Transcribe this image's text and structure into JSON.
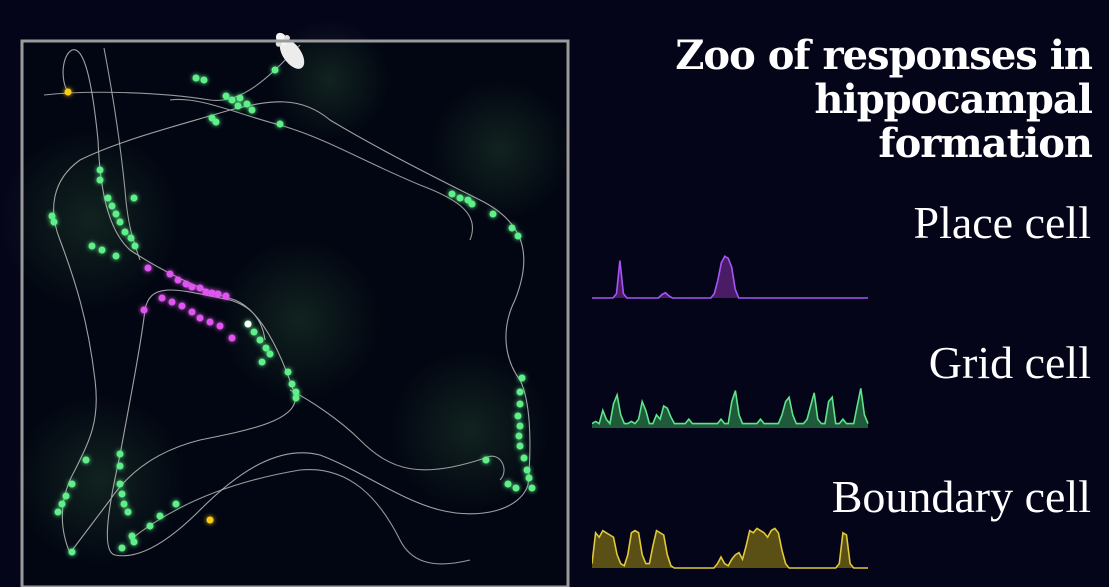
{
  "title": {
    "line1": "Zoo of responses in",
    "line2": "hippocampal formation"
  },
  "cells": [
    {
      "key": "place",
      "label": "Place cell",
      "color": "#a855f7",
      "fill": "#4a1c66",
      "trace": [
        0,
        0,
        0,
        0,
        0,
        0,
        0,
        0.1,
        0.85,
        0.1,
        0,
        0,
        0,
        0,
        0,
        0,
        0,
        0,
        0,
        0,
        0.08,
        0.12,
        0.05,
        0,
        0,
        0,
        0,
        0,
        0,
        0,
        0,
        0,
        0,
        0,
        0,
        0.1,
        0.4,
        0.8,
        0.95,
        0.9,
        0.7,
        0.2,
        0,
        0,
        0,
        0,
        0,
        0,
        0,
        0,
        0,
        0,
        0,
        0,
        0,
        0,
        0,
        0,
        0,
        0,
        0,
        0,
        0,
        0,
        0,
        0,
        0,
        0,
        0,
        0,
        0,
        0,
        0,
        0,
        0,
        0,
        0,
        0,
        0,
        0
      ]
    },
    {
      "key": "grid",
      "label": "Grid cell",
      "color": "#5ee58a",
      "fill": "#1f5a3a",
      "trace": [
        0.1,
        0.15,
        0.1,
        0.4,
        0.2,
        0.1,
        0.55,
        0.75,
        0.3,
        0.1,
        0.1,
        0.15,
        0.1,
        0.2,
        0.6,
        0.4,
        0.1,
        0.1,
        0.3,
        0.2,
        0.5,
        0.45,
        0.25,
        0.1,
        0.1,
        0.1,
        0.1,
        0.2,
        0.1,
        0.1,
        0.1,
        0.1,
        0.1,
        0.1,
        0.1,
        0.1,
        0.2,
        0.1,
        0.1,
        0.6,
        0.85,
        0.3,
        0.1,
        0.1,
        0.1,
        0.1,
        0.1,
        0.2,
        0.1,
        0.1,
        0.1,
        0.1,
        0.1,
        0.3,
        0.6,
        0.7,
        0.3,
        0.1,
        0.1,
        0.1,
        0.2,
        0.5,
        0.8,
        0.2,
        0.1,
        0.1,
        0.6,
        0.7,
        0.1,
        0.1,
        0.2,
        0.1,
        0.1,
        0.1,
        0.5,
        0.9,
        0.3,
        0.1
      ]
    },
    {
      "key": "boundary",
      "label": "Boundary cell",
      "color": "#e0c93a",
      "fill": "#5a4f14",
      "trace": [
        0.1,
        0.8,
        0.7,
        0.85,
        0.8,
        0.75,
        0.7,
        0.3,
        0.1,
        0.05,
        0.3,
        0.8,
        0.85,
        0.8,
        0.3,
        0.1,
        0.1,
        0.5,
        0.85,
        0.8,
        0.75,
        0.3,
        0.05,
        0,
        0,
        0,
        0,
        0,
        0,
        0,
        0,
        0,
        0,
        0,
        0,
        0.1,
        0.25,
        0.1,
        0.05,
        0.2,
        0.3,
        0.35,
        0.2,
        0.5,
        0.85,
        0.8,
        0.9,
        0.85,
        0.8,
        0.7,
        0.85,
        0.9,
        0.8,
        0.4,
        0.1,
        0,
        0,
        0,
        0,
        0,
        0,
        0,
        0,
        0,
        0,
        0,
        0,
        0,
        0,
        0.1,
        0.8,
        0.75,
        0.1,
        0,
        0,
        0,
        0,
        0
      ]
    }
  ],
  "arena": {
    "border_color": "#9a9a9a",
    "trajectory_color": "#bdbdbd",
    "place_spike_color": "#d946ef",
    "grid_spike_color": "#5ef08a",
    "boundary_spike_color": "#facc15",
    "rat_icon": "rat-icon"
  }
}
